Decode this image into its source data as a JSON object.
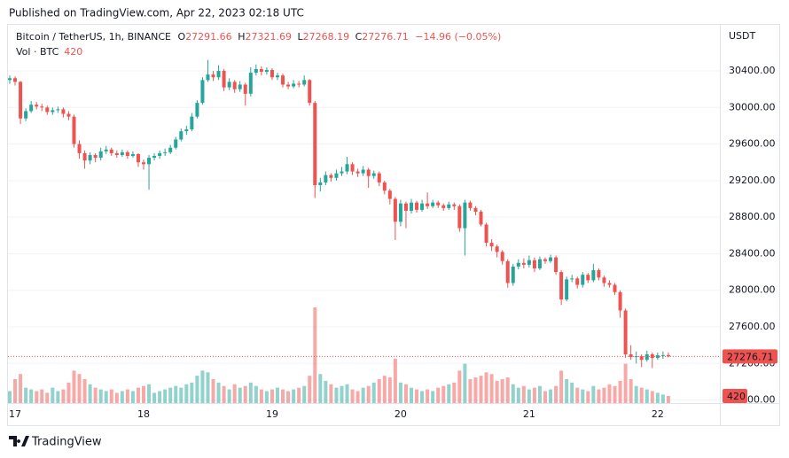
{
  "header": {
    "published": "Published on TradingView.com, Apr 22, 2023 02:18 UTC"
  },
  "footer": {
    "brand": "TradingView"
  },
  "chart_data": {
    "type": "candlestick",
    "symbol": "Bitcoin / TetherUS, 1h, BINANCE",
    "legend_labels": [
      "O",
      "H",
      "L",
      "C"
    ],
    "change": "−14.96 (−0.05%)",
    "volume_label": "Vol · BTC",
    "currency": "USDT",
    "up_color": "#26a69a",
    "down_color": "#ef5350",
    "grid": true,
    "ylim": [
      26767,
      30904
    ],
    "yticks": [
      {
        "value": 26800,
        "label": "26800.00"
      },
      {
        "value": 27200,
        "label": "27200.00"
      },
      {
        "value": 27600,
        "label": "27600.00"
      },
      {
        "value": 28000,
        "label": "28000.00"
      },
      {
        "value": 28400,
        "label": "28400.00"
      },
      {
        "value": 28800,
        "label": "28800.00"
      },
      {
        "value": 29200,
        "label": "29200.00"
      },
      {
        "value": 29600,
        "label": "29600.00"
      },
      {
        "value": 30000,
        "label": "30000.00"
      },
      {
        "value": 30400,
        "label": "30400.00"
      }
    ],
    "categories": [
      null,
      "17",
      null,
      null,
      null,
      null,
      null,
      null,
      null,
      null,
      null,
      null,
      null,
      null,
      null,
      null,
      null,
      null,
      null,
      null,
      null,
      null,
      null,
      null,
      null,
      "18",
      null,
      null,
      null,
      null,
      null,
      null,
      null,
      null,
      null,
      null,
      null,
      null,
      null,
      null,
      null,
      null,
      null,
      null,
      null,
      null,
      null,
      null,
      null,
      "19",
      null,
      null,
      null,
      null,
      null,
      null,
      null,
      null,
      null,
      null,
      null,
      null,
      null,
      null,
      null,
      null,
      null,
      null,
      null,
      null,
      null,
      null,
      null,
      "20",
      null,
      null,
      null,
      null,
      null,
      null,
      null,
      null,
      null,
      null,
      null,
      null,
      null,
      null,
      null,
      null,
      null,
      null,
      null,
      null,
      null,
      null,
      null,
      "21",
      null,
      null,
      null,
      null,
      null,
      null,
      null,
      null,
      null,
      null,
      null,
      null,
      null,
      null,
      null,
      null,
      null,
      null,
      null,
      null,
      null,
      null,
      null,
      "22",
      null,
      null
    ],
    "open": [
      30300,
      30320,
      30280,
      29880,
      29960,
      30030,
      30010,
      30000,
      29950,
      29970,
      29980,
      29930,
      29900,
      29600,
      29500,
      29420,
      29480,
      29450,
      29520,
      29540,
      29500,
      29480,
      29510,
      29470,
      29490,
      29400,
      29380,
      29450,
      29470,
      29500,
      29510,
      29560,
      29650,
      29740,
      29760,
      29900,
      30050,
      30300,
      30360,
      30330,
      30400,
      30220,
      30280,
      30200,
      30250,
      30150,
      30380,
      30420,
      30390,
      30410,
      30330,
      30350,
      30250,
      30230,
      30260,
      30250,
      30300,
      30050,
      29150,
      29180,
      29260,
      29230,
      29280,
      29300,
      29380,
      29300,
      29280,
      29320,
      29250,
      29280,
      29180,
      29090,
      29000,
      28750,
      28950,
      28870,
      28960,
      28880,
      28950,
      28920,
      28960,
      28930,
      28900,
      28940,
      28920,
      28680,
      28960,
      28900,
      28860,
      28720,
      28520,
      28480,
      28420,
      28320,
      28080,
      28260,
      28300,
      28280,
      28330,
      28240,
      28340,
      28320,
      28360,
      28200,
      27900,
      28120,
      28130,
      28060,
      28170,
      28110,
      28220,
      28140,
      28080,
      28060,
      27980,
      27780,
      27300,
      27270,
      27280,
      27240,
      27300,
      27260,
      27290,
      27291.66
    ],
    "high": [
      30350,
      30340,
      30290,
      29990,
      30070,
      30060,
      30040,
      30020,
      30000,
      30010,
      30000,
      29960,
      29920,
      29640,
      29530,
      29510,
      29500,
      29560,
      29580,
      29560,
      29530,
      29540,
      29530,
      29520,
      29500,
      29430,
      29480,
      29500,
      29530,
      29550,
      29590,
      29680,
      29770,
      29800,
      29940,
      30080,
      30330,
      30520,
      30400,
      30460,
      30420,
      30320,
      30300,
      30290,
      30270,
      30440,
      30470,
      30450,
      30440,
      30430,
      30380,
      30370,
      30280,
      30300,
      30290,
      30350,
      30310,
      30070,
      29230,
      29300,
      29280,
      29320,
      29350,
      29460,
      29400,
      29330,
      29360,
      29340,
      29310,
      29300,
      29200,
      29110,
      29020,
      28990,
      28970,
      29000,
      28980,
      28990,
      29070,
      28990,
      28980,
      28950,
      28970,
      28960,
      28940,
      28990,
      28980,
      28920,
      28880,
      28740,
      28560,
      28500,
      28440,
      28340,
      28290,
      28340,
      28350,
      28380,
      28360,
      28370,
      28360,
      28390,
      28380,
      28220,
      28150,
      28170,
      28150,
      28200,
      28190,
      28290,
      28240,
      28160,
      28110,
      28080,
      28000,
      27800,
      27400,
      27330,
      27300,
      27340,
      27320,
      27320,
      27330,
      27321.69
    ],
    "low": [
      30260,
      30240,
      29820,
      29850,
      29940,
      29980,
      29960,
      29920,
      29920,
      29940,
      29890,
      29860,
      29560,
      29440,
      29330,
      29380,
      29400,
      29420,
      29490,
      29470,
      29450,
      29460,
      29440,
      29450,
      29350,
      29320,
      29100,
      29420,
      29440,
      29470,
      29490,
      29540,
      29630,
      29700,
      29740,
      29880,
      30030,
      30280,
      30290,
      30300,
      30180,
      30190,
      30160,
      30170,
      30020,
      30120,
      30350,
      30350,
      30360,
      30300,
      30300,
      30220,
      30200,
      30210,
      30220,
      30230,
      30020,
      29010,
      29080,
      29150,
      29190,
      29200,
      29250,
      29270,
      29260,
      29240,
      29250,
      29120,
      29220,
      29140,
      29050,
      28940,
      28550,
      28700,
      28680,
      28840,
      28850,
      28860,
      28890,
      28900,
      28900,
      28870,
      28880,
      28880,
      28640,
      28380,
      28870,
      28820,
      28700,
      28480,
      28430,
      28360,
      28280,
      28030,
      28050,
      28230,
      28240,
      28250,
      28200,
      28220,
      28290,
      28300,
      28170,
      27840,
      27880,
      28090,
      28020,
      28030,
      28080,
      28090,
      28110,
      28040,
      28030,
      27950,
      27700,
      27260,
      27240,
      27200,
      27160,
      27220,
      27150,
      27240,
      27250,
      27268.19
    ],
    "close": [
      30320,
      30280,
      29880,
      29960,
      30030,
      30010,
      30000,
      29950,
      29970,
      29980,
      29930,
      29900,
      29600,
      29500,
      29420,
      29480,
      29450,
      29520,
      29540,
      29500,
      29480,
      29510,
      29470,
      29490,
      29400,
      29380,
      29450,
      29470,
      29500,
      29510,
      29560,
      29650,
      29740,
      29760,
      29900,
      30050,
      30300,
      30360,
      30330,
      30400,
      30220,
      30280,
      30200,
      30250,
      30150,
      30380,
      30420,
      30390,
      30410,
      30330,
      30350,
      30250,
      30230,
      30260,
      30250,
      30300,
      30050,
      29150,
      29180,
      29260,
      29230,
      29280,
      29300,
      29380,
      29300,
      29280,
      29320,
      29250,
      29280,
      29180,
      29090,
      29000,
      28750,
      28950,
      28870,
      28960,
      28880,
      28950,
      28920,
      28960,
      28930,
      28900,
      28940,
      28920,
      28680,
      28960,
      28900,
      28860,
      28720,
      28520,
      28480,
      28420,
      28320,
      28080,
      28260,
      28300,
      28280,
      28330,
      28240,
      28340,
      28320,
      28360,
      28200,
      27900,
      28120,
      28130,
      28060,
      28170,
      28110,
      28220,
      28140,
      28080,
      28060,
      27980,
      27780,
      27300,
      27270,
      27280,
      27240,
      27300,
      27260,
      27290,
      27291.66,
      27276.71
    ],
    "volume": [
      700,
      1400,
      1700,
      900,
      800,
      700,
      800,
      600,
      900,
      700,
      800,
      1200,
      1900,
      1700,
      1400,
      1100,
      900,
      800,
      700,
      800,
      600,
      700,
      800,
      700,
      900,
      1000,
      1100,
      600,
      700,
      800,
      900,
      1000,
      900,
      1100,
      1200,
      1600,
      1900,
      1800,
      1400,
      1200,
      1000,
      800,
      1100,
      900,
      1000,
      1200,
      1000,
      800,
      700,
      800,
      900,
      800,
      700,
      800,
      900,
      1000,
      1600,
      5600,
      1700,
      1300,
      1100,
      900,
      1000,
      1100,
      800,
      700,
      900,
      1000,
      1200,
      1400,
      1600,
      1500,
      2600,
      1200,
      1100,
      900,
      800,
      700,
      800,
      700,
      900,
      1000,
      1100,
      1200,
      1900,
      2300,
      1400,
      1500,
      1600,
      1800,
      1700,
      1300,
      1400,
      1500,
      1100,
      900,
      1000,
      800,
      900,
      1000,
      700,
      800,
      1000,
      1900,
      1400,
      1200,
      900,
      800,
      700,
      1000,
      800,
      900,
      1100,
      1000,
      1300,
      2300,
      1400,
      1000,
      900,
      800,
      700,
      600,
      500,
      420
    ]
  }
}
